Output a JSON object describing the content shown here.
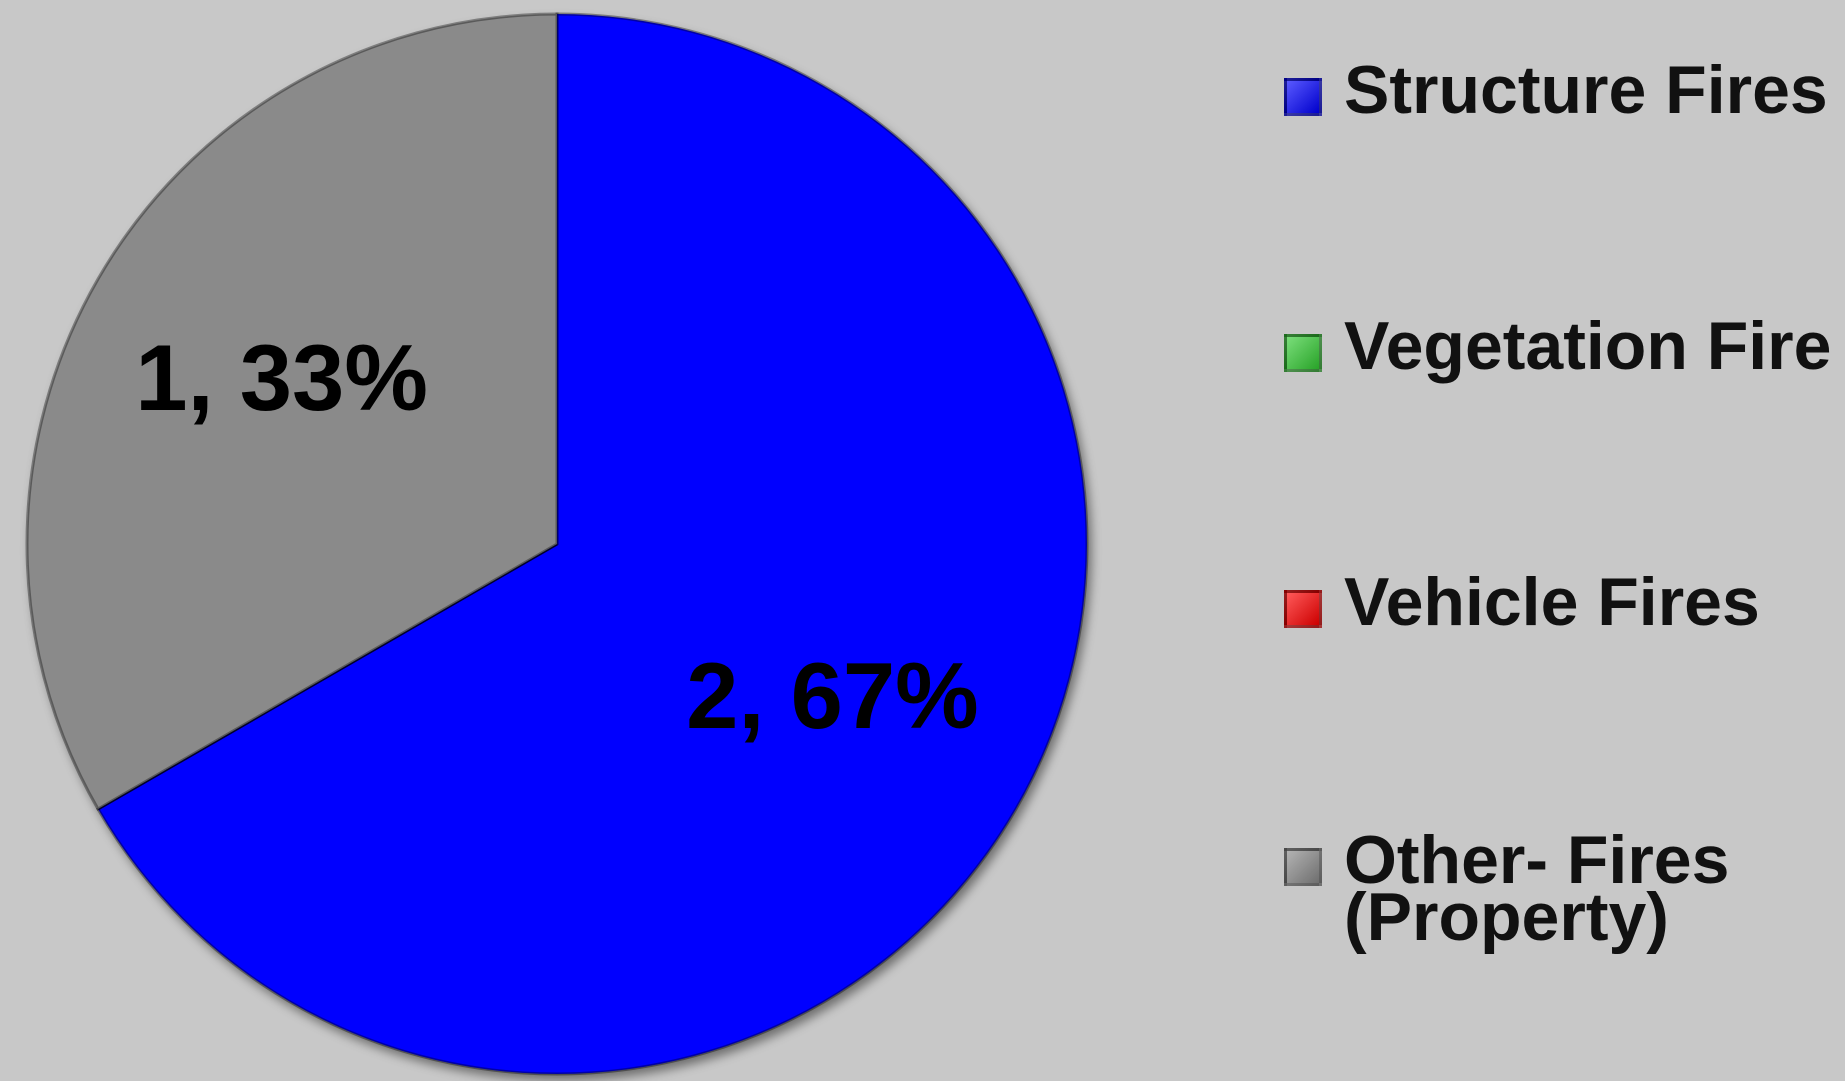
{
  "chart_data": {
    "type": "pie",
    "categories": [
      "Structure Fires",
      "Vegetation Fire",
      "Vehicle Fires",
      "Other- Fires (Property)"
    ],
    "values": [
      2,
      0,
      0,
      1
    ],
    "value_labels": [
      "2, 67%",
      null,
      null,
      "1, 33%"
    ],
    "colors": [
      "#0000ff",
      "#33cc33",
      "#ff0000",
      "#8a8a8a"
    ],
    "legend": "right"
  }
}
